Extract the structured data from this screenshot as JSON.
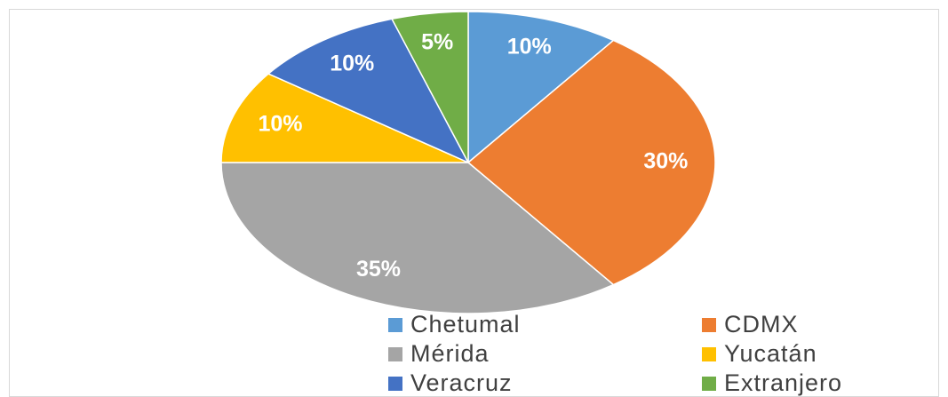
{
  "chart_data": {
    "type": "pie",
    "categories": [
      "Chetumal",
      "CDMX",
      "Mérida",
      "Yucatán",
      "Veracruz",
      "Extranjero"
    ],
    "values": [
      10,
      30,
      35,
      10,
      10,
      5
    ],
    "value_labels": [
      "10%",
      "30%",
      "35%",
      "10%",
      "10%",
      "5%"
    ],
    "colors": [
      "#5b9bd5",
      "#ed7d31",
      "#a5a5a5",
      "#ffc000",
      "#4472c4",
      "#70ad47"
    ],
    "legend": "bottom"
  }
}
